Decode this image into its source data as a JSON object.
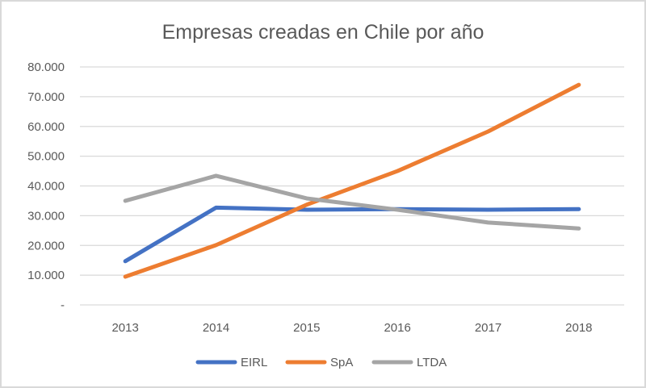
{
  "chart_data": {
    "type": "line",
    "title": "Empresas creadas en Chile por año",
    "xlabel": "",
    "ylabel": "",
    "categories": [
      "2013",
      "2014",
      "2015",
      "2016",
      "2017",
      "2018"
    ],
    "ylim": [
      0,
      80000
    ],
    "yticks": [
      0,
      10000,
      20000,
      30000,
      40000,
      50000,
      60000,
      70000,
      80000
    ],
    "ytick_labels": [
      "-",
      "10.000",
      "20.000",
      "30.000",
      "40.000",
      "50.000",
      "60.000",
      "70.000",
      "80.000"
    ],
    "grid": true,
    "legend_position": "bottom",
    "series": [
      {
        "name": "EIRL",
        "color": "#4472c4",
        "values": [
          14700,
          32700,
          32000,
          32200,
          32000,
          32200
        ]
      },
      {
        "name": "SpA",
        "color": "#ed7d31",
        "values": [
          9500,
          20100,
          33700,
          45000,
          58300,
          74000
        ]
      },
      {
        "name": "LTDA",
        "color": "#a5a5a5",
        "values": [
          35000,
          43400,
          35800,
          32000,
          27700,
          25700
        ]
      }
    ]
  }
}
